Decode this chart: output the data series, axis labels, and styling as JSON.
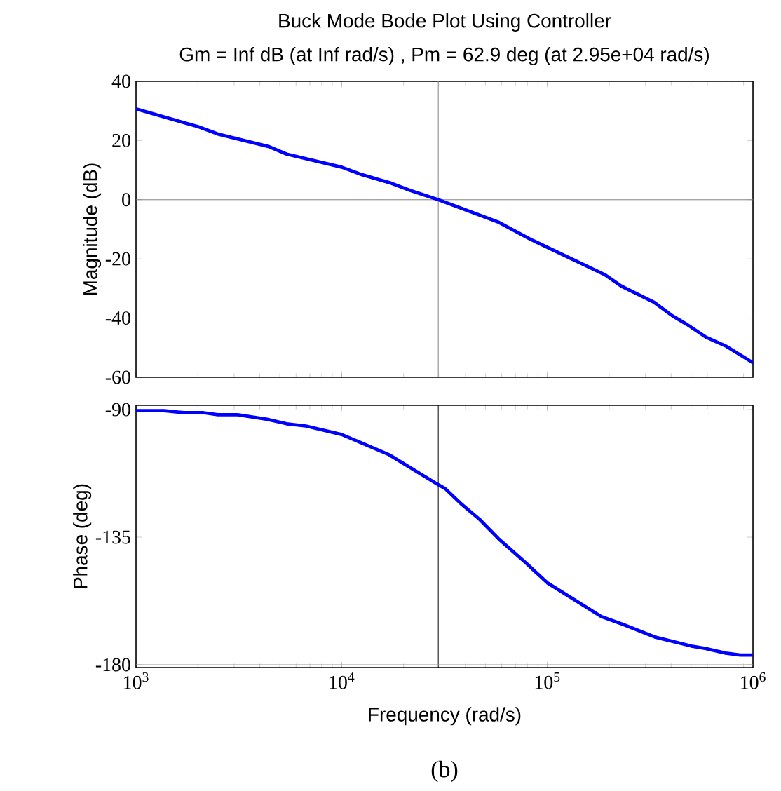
{
  "chart_data": [
    {
      "type": "line",
      "title": "Buck Mode Bode Plot Using Controller",
      "subtitle": "Gm = Inf dB (at Inf rad/s) ,  Pm = 62.9 deg (at 2.95e+04 rad/s)",
      "ylabel": "Magnitude (dB)",
      "log": "x",
      "tick_labels": "y",
      "xlim": [
        1000,
        1000000
      ],
      "xticks": [
        {
          "value": 1000,
          "label": null
        },
        {
          "value": 10000,
          "label": null
        },
        {
          "value": 100000,
          "label": null
        },
        {
          "value": 1000000,
          "label": null
        }
      ],
      "ylim": [
        -60,
        40
      ],
      "yticks": [
        -60,
        -40,
        -20,
        0,
        20,
        40
      ],
      "ref_lines": [
        {
          "axis": "y",
          "value": 0,
          "color": "#808080"
        },
        {
          "axis": "x",
          "value": 29500,
          "color": "#808080"
        }
      ],
      "series": [
        {
          "color": "#0000ff",
          "x": [
            1000,
            2000,
            2500,
            4400,
            5400,
            10000,
            12500,
            17400,
            21400,
            29500,
            57500,
            83000,
            190000,
            229000,
            331000,
            407000,
            479000,
            589000,
            741000,
            1000000
          ],
          "values": [
            30.7,
            24.7,
            22.2,
            18.0,
            15.4,
            11.0,
            8.5,
            5.6,
            3.2,
            0,
            -7.5,
            -13.4,
            -25.3,
            -29.2,
            -34.7,
            -39.3,
            -42.2,
            -46.4,
            -49.5,
            -55.1
          ]
        }
      ]
    },
    {
      "type": "line",
      "ylabel": "Phase (deg)",
      "xlabel": "Frequency  (rad/s)",
      "log": "x",
      "xlim": [
        1000,
        1000000
      ],
      "xticks": [
        {
          "value": 1000,
          "label": "10$^{3}$"
        },
        {
          "value": 10000,
          "label": "10$^{4}$"
        },
        {
          "value": 100000,
          "label": "10$^{5}$"
        },
        {
          "value": 1000000,
          "label": "10$^{6}$"
        }
      ],
      "ylim": [
        -181,
        -88.5
      ],
      "yticks": [
        -180,
        -135,
        -90
      ],
      "ref_lines": [
        {
          "axis": "x",
          "value": 29500,
          "color": "#000000"
        },
        {
          "axis": "y",
          "value": -180,
          "color": "#a0a0a0"
        }
      ],
      "annotations": [
        "(b)"
      ],
      "series": [
        {
          "color": "#0000ff",
          "x": [
            1000,
            1370,
            1710,
            2130,
            2500,
            3120,
            4340,
            5400,
            6700,
            10000,
            17000,
            29500,
            31900,
            38600,
            46800,
            58200,
            78700,
            100000,
            183000,
            234000,
            333000,
            502000,
            591000,
            737000,
            867000,
            1000000
          ],
          "values": [
            -90.4,
            -90.4,
            -91.1,
            -91.1,
            -91.8,
            -91.8,
            -93.4,
            -95.0,
            -95.8,
            -98.8,
            -105.9,
            -116.5,
            -117.9,
            -123.6,
            -128.7,
            -135.7,
            -144.1,
            -151.1,
            -163.0,
            -165.8,
            -170.2,
            -173.4,
            -174.3,
            -175.9,
            -176.6,
            -176.6
          ]
        }
      ]
    }
  ]
}
